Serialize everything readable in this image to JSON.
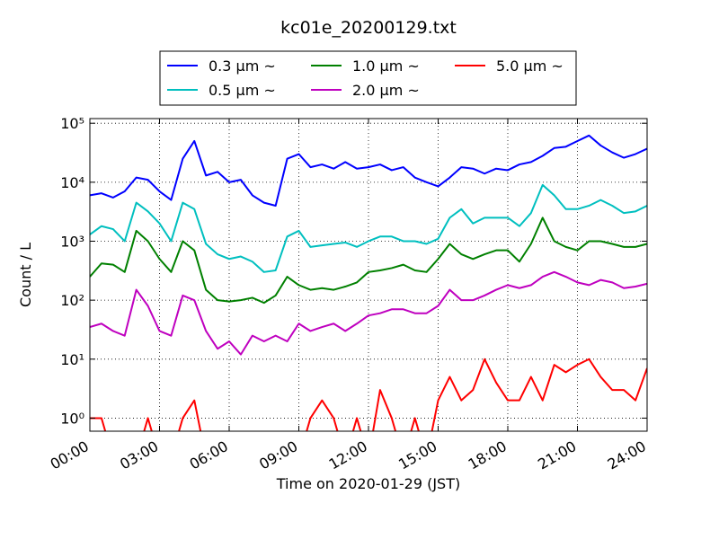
{
  "chart_data": {
    "type": "line",
    "title": "kc01e_20200129.txt",
    "x_label": "Time on 2020-01-29 (JST)",
    "y_label": "Count / L",
    "yscale": "log",
    "grid": true,
    "legend": "upper center",
    "xlim": [
      0,
      24
    ],
    "xticks": [
      {
        "value": 0,
        "label": "00:00"
      },
      {
        "value": 3,
        "label": "03:00"
      },
      {
        "value": 6,
        "label": "06:00"
      },
      {
        "value": 9,
        "label": "09:00"
      },
      {
        "value": 12,
        "label": "12:00"
      },
      {
        "value": 15,
        "label": "15:00"
      },
      {
        "value": 18,
        "label": "18:00"
      },
      {
        "value": 21,
        "label": "21:00"
      },
      {
        "value": 24,
        "label": "24:00"
      }
    ],
    "ylim": [
      0.6,
      120000
    ],
    "yticks": [
      {
        "value": 1,
        "label": "10⁰"
      },
      {
        "value": 10,
        "label": "10¹"
      },
      {
        "value": 100,
        "label": "10²"
      },
      {
        "value": 1000,
        "label": "10³"
      },
      {
        "value": 10000,
        "label": "10⁴"
      },
      {
        "value": 100000,
        "label": "10⁵"
      }
    ],
    "x": [
      0,
      0.5,
      1,
      1.5,
      2,
      2.5,
      3,
      3.5,
      4,
      4.5,
      5,
      5.5,
      6,
      6.5,
      7,
      7.5,
      8,
      8.5,
      9,
      9.5,
      10,
      10.5,
      11,
      11.5,
      12,
      12.5,
      13,
      13.5,
      14,
      14.5,
      15,
      15.5,
      16,
      16.5,
      17,
      17.5,
      18,
      18.5,
      19,
      19.5,
      20,
      20.5,
      21,
      21.5,
      22,
      22.5,
      23,
      23.5,
      24
    ],
    "series": [
      {
        "name": "0.3 μm ~",
        "color": "#0000ff",
        "values": [
          6000,
          6500,
          5500,
          7000,
          12000,
          11000,
          7000,
          5000,
          25000,
          50000,
          13000,
          15000,
          10000,
          11000,
          6000,
          4500,
          4000,
          25000,
          30000,
          18000,
          20000,
          17000,
          22000,
          17000,
          18000,
          20000,
          16000,
          18000,
          12000,
          10000,
          8500,
          12000,
          18000,
          17000,
          14000,
          17000,
          16000,
          20000,
          22000,
          28000,
          38000,
          40000,
          50000,
          62000,
          42000,
          32000,
          26000,
          30000,
          37000
        ]
      },
      {
        "name": "0.5 μm ~",
        "color": "#00bfbf",
        "values": [
          1300,
          1800,
          1600,
          1000,
          4500,
          3200,
          2000,
          1000,
          4500,
          3500,
          900,
          600,
          500,
          550,
          450,
          300,
          320,
          1200,
          1500,
          800,
          850,
          900,
          950,
          800,
          1000,
          1200,
          1200,
          1000,
          1000,
          900,
          1100,
          2500,
          3500,
          2000,
          2500,
          2500,
          2500,
          1800,
          3000,
          9000,
          6000,
          3500,
          3500,
          4000,
          5000,
          4000,
          3000,
          3200,
          4000
        ]
      },
      {
        "name": "1.0 μm ~",
        "color": "#008000",
        "values": [
          250,
          420,
          400,
          300,
          1500,
          1000,
          500,
          300,
          1000,
          700,
          150,
          100,
          95,
          100,
          110,
          90,
          120,
          250,
          180,
          150,
          160,
          150,
          170,
          200,
          300,
          320,
          350,
          400,
          320,
          300,
          500,
          900,
          600,
          500,
          600,
          700,
          700,
          450,
          900,
          2500,
          1000,
          800,
          700,
          1000,
          1000,
          900,
          800,
          800,
          900
        ]
      },
      {
        "name": "2.0 μm ~",
        "color": "#bf00bf",
        "values": [
          35,
          40,
          30,
          25,
          150,
          80,
          30,
          25,
          120,
          100,
          30,
          15,
          20,
          12,
          25,
          20,
          25,
          20,
          40,
          30,
          35,
          40,
          30,
          40,
          55,
          60,
          70,
          70,
          60,
          60,
          80,
          150,
          100,
          100,
          120,
          150,
          180,
          160,
          180,
          250,
          300,
          250,
          200,
          180,
          220,
          200,
          160,
          170,
          190
        ]
      },
      {
        "name": "5.0 μm ~",
        "color": "#ff0000",
        "values": [
          1,
          1,
          0,
          0,
          0,
          1,
          0,
          0,
          1,
          2,
          0,
          0,
          0,
          0,
          0,
          0,
          0,
          0,
          0,
          1,
          2,
          1,
          0,
          1,
          0,
          3,
          1,
          0,
          1,
          0,
          2,
          5,
          2,
          3,
          10,
          4,
          2,
          2,
          5,
          2,
          8,
          6,
          8,
          10,
          5,
          3,
          3,
          2,
          7
        ]
      }
    ]
  }
}
